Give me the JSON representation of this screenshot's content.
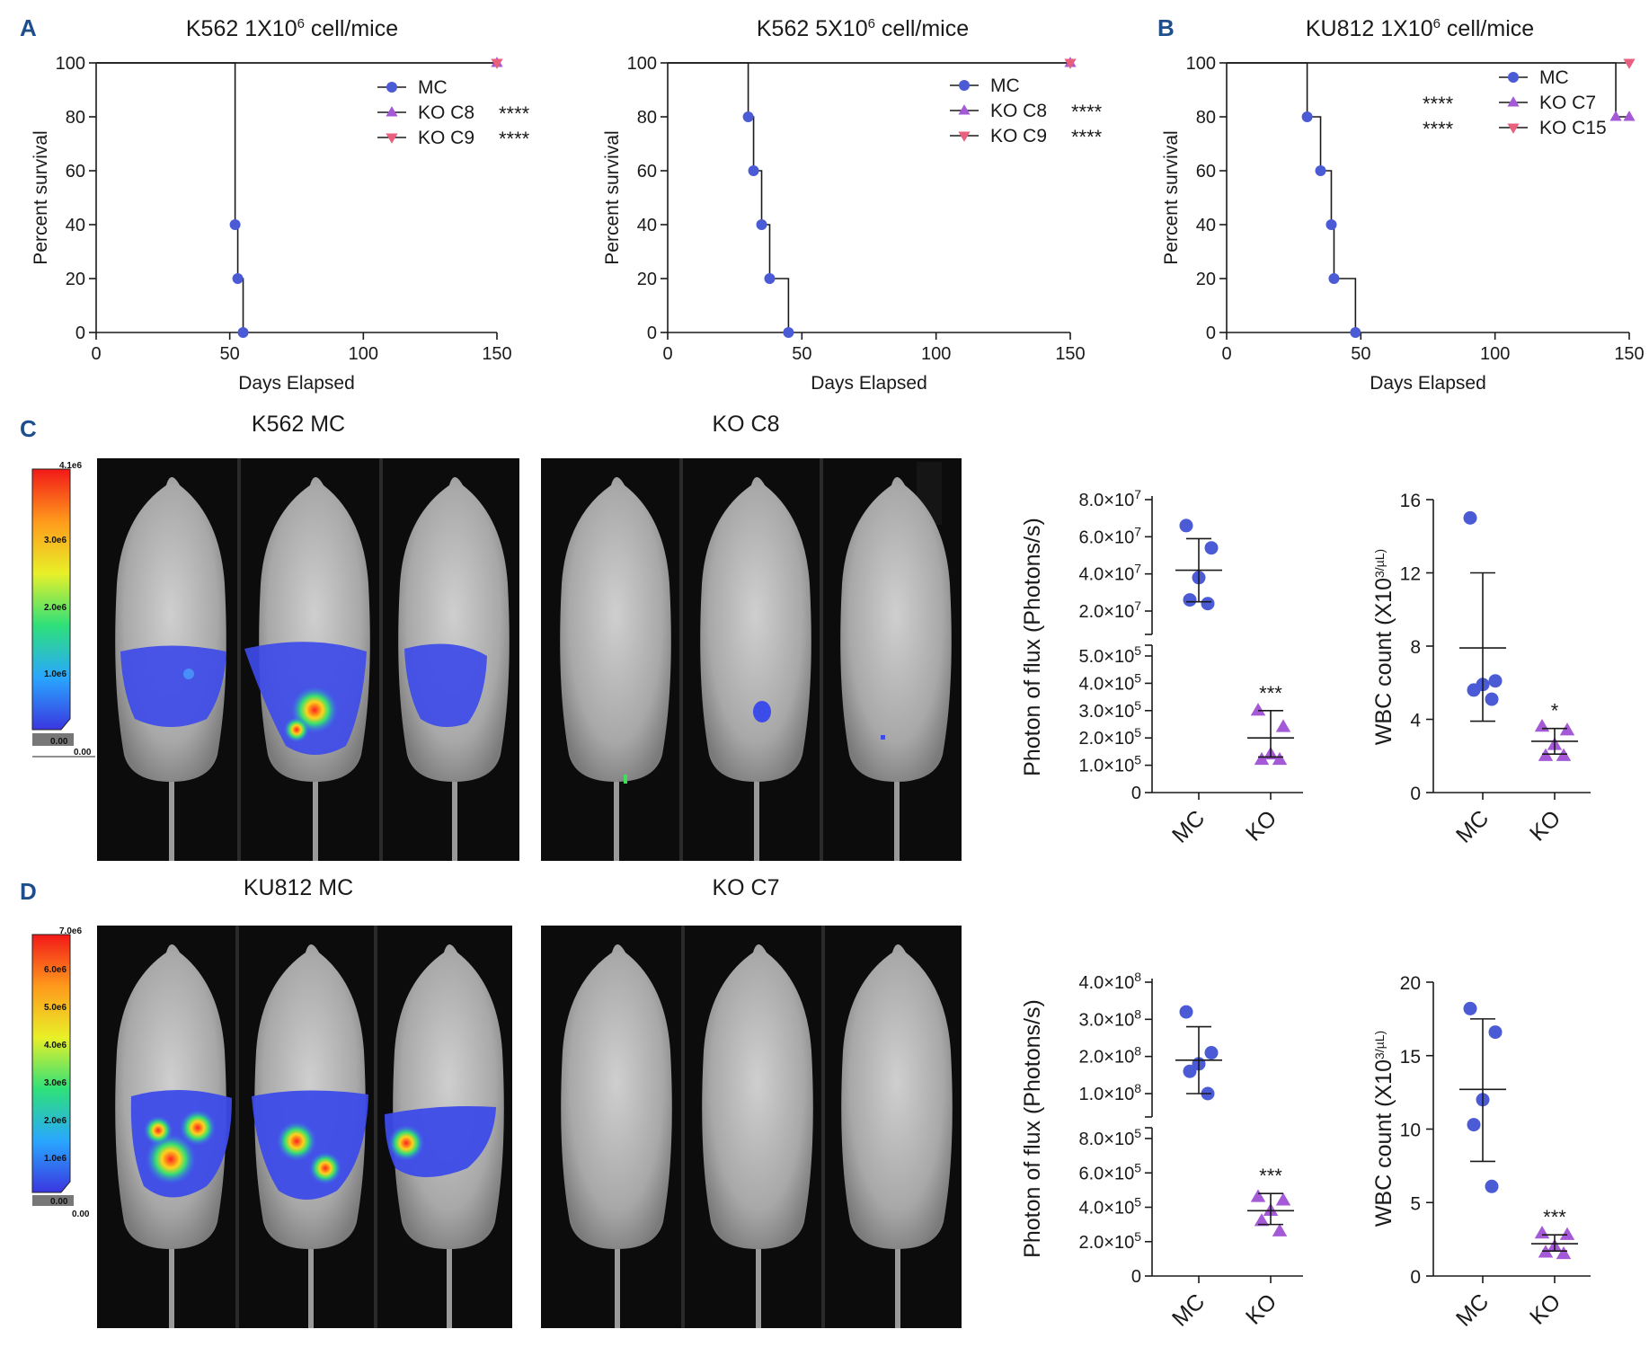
{
  "colors": {
    "mc": "#4b5bd6",
    "ko_up": "#a45ad6",
    "ko_down": "#e8607e",
    "panel_label": "#1f4e8c"
  },
  "panel_labels": {
    "a": "A",
    "b": "B",
    "c": "C",
    "d": "D"
  },
  "chart_data": [
    {
      "id": "A1",
      "type": "line",
      "subtype": "kaplan-meier",
      "title": "K562 1X10",
      "title_sup": "6",
      "title_tail": " cell/mice",
      "xlabel": "Days Elapsed",
      "ylabel": "Percent survival",
      "xlim": [
        0,
        150
      ],
      "ylim": [
        0,
        100
      ],
      "xticks": [
        0,
        50,
        100,
        150
      ],
      "yticks": [
        0,
        20,
        40,
        60,
        80,
        100
      ],
      "legend_side": "right",
      "series": [
        {
          "name": "MC",
          "stars": "",
          "marker": "circle",
          "color": "#4b5bd6",
          "steps": [
            [
              0,
              100
            ],
            [
              52,
              100
            ],
            [
              52,
              40
            ],
            [
              53,
              40
            ],
            [
              53,
              20
            ],
            [
              55,
              20
            ],
            [
              55,
              0
            ]
          ],
          "points": [
            [
              52,
              40
            ],
            [
              53,
              20
            ],
            [
              55,
              0
            ]
          ]
        },
        {
          "name": "KO C8",
          "stars": "****",
          "marker": "triangle-up",
          "color": "#a45ad6",
          "steps": [
            [
              0,
              100
            ],
            [
              150,
              100
            ]
          ],
          "points": [
            [
              150,
              100
            ]
          ]
        },
        {
          "name": "KO C9",
          "stars": "****",
          "marker": "triangle-down",
          "color": "#e8607e",
          "steps": [
            [
              0,
              100
            ],
            [
              150,
              100
            ]
          ],
          "points": [
            [
              150,
              100
            ]
          ]
        }
      ]
    },
    {
      "id": "A2",
      "type": "line",
      "subtype": "kaplan-meier",
      "title": "K562 5X10",
      "title_sup": "6",
      "title_tail": " cell/mice",
      "xlabel": "Days Elapsed",
      "ylabel": "Percent survival",
      "xlim": [
        0,
        150
      ],
      "ylim": [
        0,
        100
      ],
      "xticks": [
        0,
        50,
        100,
        150
      ],
      "yticks": [
        0,
        20,
        40,
        60,
        80,
        100
      ],
      "legend_side": "right",
      "series": [
        {
          "name": "MC",
          "stars": "",
          "marker": "circle",
          "color": "#4b5bd6",
          "steps": [
            [
              0,
              100
            ],
            [
              30,
              100
            ],
            [
              30,
              80
            ],
            [
              32,
              80
            ],
            [
              32,
              60
            ],
            [
              35,
              60
            ],
            [
              35,
              40
            ],
            [
              38,
              40
            ],
            [
              38,
              20
            ],
            [
              45,
              20
            ],
            [
              45,
              0
            ]
          ],
          "points": [
            [
              30,
              80
            ],
            [
              32,
              60
            ],
            [
              35,
              40
            ],
            [
              38,
              20
            ],
            [
              45,
              0
            ]
          ]
        },
        {
          "name": "KO C8",
          "stars": "****",
          "marker": "triangle-up",
          "color": "#a45ad6",
          "steps": [
            [
              0,
              100
            ],
            [
              150,
              100
            ]
          ],
          "points": [
            [
              150,
              100
            ]
          ]
        },
        {
          "name": "KO C9",
          "stars": "****",
          "marker": "triangle-down",
          "color": "#e8607e",
          "steps": [
            [
              0,
              100
            ],
            [
              150,
              100
            ]
          ],
          "points": [
            [
              150,
              100
            ]
          ]
        }
      ]
    },
    {
      "id": "B",
      "type": "line",
      "subtype": "kaplan-meier",
      "title": "KU812 1X10",
      "title_sup": "6",
      "title_tail": " cell/mice",
      "xlabel": "Days Elapsed",
      "ylabel": "Percent survival",
      "xlim": [
        0,
        150
      ],
      "ylim": [
        0,
        100
      ],
      "xticks": [
        0,
        50,
        100,
        150
      ],
      "yticks": [
        0,
        20,
        40,
        60,
        80,
        100
      ],
      "legend_side": "left",
      "series": [
        {
          "name": "MC",
          "stars": "",
          "marker": "circle",
          "color": "#4b5bd6",
          "steps": [
            [
              0,
              100
            ],
            [
              30,
              100
            ],
            [
              30,
              80
            ],
            [
              35,
              80
            ],
            [
              35,
              60
            ],
            [
              39,
              60
            ],
            [
              39,
              40
            ],
            [
              40,
              40
            ],
            [
              40,
              20
            ],
            [
              48,
              20
            ],
            [
              48,
              0
            ]
          ],
          "points": [
            [
              30,
              80
            ],
            [
              35,
              60
            ],
            [
              39,
              40
            ],
            [
              40,
              20
            ],
            [
              48,
              0
            ]
          ]
        },
        {
          "name": "KO C7",
          "stars": "****",
          "marker": "triangle-up",
          "color": "#a45ad6",
          "steps": [
            [
              0,
              100
            ],
            [
              145,
              100
            ],
            [
              145,
              80
            ],
            [
              150,
              80
            ]
          ],
          "points": [
            [
              145,
              80
            ],
            [
              150,
              80
            ]
          ]
        },
        {
          "name": "KO C15",
          "stars": "****",
          "marker": "triangle-down",
          "color": "#e8607e",
          "steps": [
            [
              0,
              100
            ],
            [
              150,
              100
            ]
          ],
          "points": [
            [
              150,
              100
            ]
          ]
        }
      ]
    },
    {
      "id": "C-flux",
      "type": "scatter",
      "ylabel": "Photon of flux (Photons/s)",
      "categories": [
        "MC",
        "KO"
      ],
      "broken_axis": true,
      "upper": {
        "ylim": [
          10000000.0,
          80000000.0
        ],
        "ticks": [
          "8.0×10^7",
          "6.0×10^7",
          "4.0×10^7",
          "2.0×10^7"
        ],
        "tick_values": [
          80000000.0,
          60000000.0,
          40000000.0,
          20000000.0
        ]
      },
      "lower": {
        "ylim": [
          0,
          500000.0
        ],
        "ticks": [
          "5.0×10^5",
          "4.0×10^5",
          "3.0×10^5",
          "2.0×10^5",
          "1.0×10^5",
          "0"
        ],
        "tick_values": [
          500000.0,
          400000.0,
          300000.0,
          200000.0,
          100000.0,
          0
        ]
      },
      "series": [
        {
          "name": "MC",
          "marker": "circle",
          "color": "#4b5bd6",
          "axis": "upper",
          "values": [
            66000000.0,
            54000000.0,
            38000000.0,
            26000000.0,
            24000000.0
          ],
          "mean": 42000000.0,
          "sd": [
            25000000.0,
            59000000.0
          ]
        },
        {
          "name": "KO",
          "marker": "triangle-up",
          "color": "#a45ad6",
          "axis": "lower",
          "values": [
            300000.0,
            240000.0,
            140000.0,
            120000.0,
            120000.0
          ],
          "mean": 200000.0,
          "sd": [
            130000.0,
            300000.0
          ],
          "sig": "***"
        }
      ]
    },
    {
      "id": "C-wbc",
      "type": "scatter",
      "ylabel": "WBC count (X10^3/µL)",
      "categories": [
        "MC",
        "KO"
      ],
      "ylim": [
        0,
        16
      ],
      "yticks": [
        0,
        4,
        8,
        12,
        16
      ],
      "series": [
        {
          "name": "MC",
          "marker": "circle",
          "color": "#4b5bd6",
          "values": [
            15.0,
            6.1,
            5.9,
            5.6,
            5.1
          ],
          "mean": 7.9,
          "sd": [
            3.9,
            12.0
          ]
        },
        {
          "name": "KO",
          "marker": "triangle-up",
          "color": "#a45ad6",
          "values": [
            3.6,
            3.4,
            2.6,
            2.0,
            2.0
          ],
          "mean": 2.8,
          "sd": [
            2.1,
            3.5
          ],
          "sig": "*"
        }
      ]
    },
    {
      "id": "D-flux",
      "type": "scatter",
      "ylabel": "Photon of flux (Photons/s)",
      "categories": [
        "MC",
        "KO"
      ],
      "broken_axis": true,
      "upper": {
        "ylim": [
          50000000.0,
          400000000.0
        ],
        "ticks": [
          "4.0×10^8",
          "3.0×10^8",
          "2.0×10^8",
          "1.0×10^8"
        ],
        "tick_values": [
          400000000.0,
          300000000.0,
          200000000.0,
          100000000.0
        ]
      },
      "lower": {
        "ylim": [
          0,
          800000.0
        ],
        "ticks": [
          "8.0×10^5",
          "6.0×10^5",
          "4.0×10^5",
          "2.0×10^5",
          "0"
        ],
        "tick_values": [
          800000.0,
          600000.0,
          400000.0,
          200000.0,
          0
        ]
      },
      "series": [
        {
          "name": "MC",
          "marker": "circle",
          "color": "#4b5bd6",
          "axis": "upper",
          "values": [
            320000000.0,
            210000000.0,
            180000000.0,
            160000000.0,
            100000000.0
          ],
          "mean": 190000000.0,
          "sd": [
            100000000.0,
            280000000.0
          ]
        },
        {
          "name": "KO",
          "marker": "triangle-up",
          "color": "#a45ad6",
          "axis": "lower",
          "values": [
            460000.0,
            440000.0,
            380000.0,
            320000.0,
            260000.0
          ],
          "mean": 380000.0,
          "sd": [
            300000.0,
            480000.0
          ],
          "sig": "***"
        }
      ]
    },
    {
      "id": "D-wbc",
      "type": "scatter",
      "ylabel": "WBC count (X10^3/µL)",
      "categories": [
        "MC",
        "KO"
      ],
      "ylim": [
        0,
        20
      ],
      "yticks": [
        0,
        5,
        10,
        15,
        20
      ],
      "series": [
        {
          "name": "MC",
          "marker": "circle",
          "color": "#4b5bd6",
          "values": [
            18.2,
            16.6,
            12.0,
            10.3,
            6.1
          ],
          "mean": 12.7,
          "sd": [
            7.8,
            17.5
          ]
        },
        {
          "name": "KO",
          "marker": "triangle-up",
          "color": "#a45ad6",
          "values": [
            2.9,
            2.8,
            2.0,
            1.6,
            1.5
          ],
          "mean": 2.2,
          "sd": [
            1.7,
            2.8
          ],
          "sig": "***"
        }
      ]
    }
  ],
  "images": {
    "c_mc_title": "K562 MC",
    "c_ko_title": "KO C8",
    "d_mc_title": "KU812 MC",
    "d_ko_title": "KO C7",
    "c_colorbar": {
      "max": "4.1e6",
      "labels": [
        "3.0e6",
        "2.0e6",
        "1.0e6",
        "0.00"
      ],
      "base": "0.00"
    },
    "d_colorbar": {
      "max": "7.0e6",
      "labels": [
        "6.0e6",
        "5.0e6",
        "4.0e6",
        "3.0e6",
        "2.0e6",
        "1.0e6",
        "0.00"
      ],
      "base": "0.00"
    }
  }
}
